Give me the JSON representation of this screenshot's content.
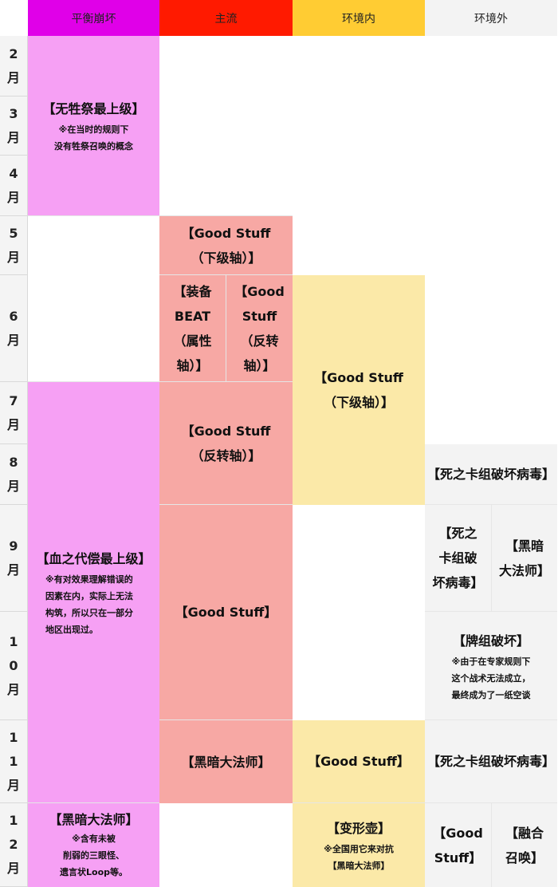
{
  "header": {
    "col_balance": "平衡崩坏",
    "col_mainstream": "主流",
    "col_in_env": "环境内",
    "col_out_env": "环境外"
  },
  "months": [
    [
      "2",
      "月"
    ],
    [
      "3",
      "月"
    ],
    [
      "4",
      "月"
    ],
    [
      "5",
      "月"
    ],
    [
      "6",
      "月"
    ],
    [
      "7",
      "月"
    ],
    [
      "8",
      "月"
    ],
    [
      "9",
      "月"
    ],
    [
      "1",
      "0",
      "月"
    ],
    [
      "1",
      "1",
      "月"
    ],
    [
      "1",
      "2",
      "月"
    ]
  ],
  "balance": {
    "b1_title": "【无牲祭最上级】",
    "b1_note1": "※在当时的规则下",
    "b1_note2": "没有牲祭召唤的概念",
    "b2_title": "【血之代偿最上级】",
    "b2_note1": "※有对效果理解错误的",
    "b2_note2": "因素在内，实际上无法",
    "b2_note3": "构筑，所以只在一部分",
    "b2_note4": "地区出现过。",
    "b3_title": "【黑暗大法师】",
    "b3_note1": "※含有未被",
    "b3_note2": "削弱的三眼怪、",
    "b3_note3": "遗言状Loop等。"
  },
  "mainstream": {
    "m1_l1": "【Good Stuff",
    "m1_l2": "（下级轴）】",
    "m2a_l1": "【装备",
    "m2a_l2": "BEAT",
    "m2a_l3": "（属性",
    "m2a_l4": "轴）】",
    "m2b_l1": "【Good",
    "m2b_l2": "Stuff",
    "m2b_l3": "（反转",
    "m2b_l4": "轴）】",
    "m3_l1": "【Good Stuff",
    "m3_l2": "（反转轴）】",
    "m4": "【Good Stuff】",
    "m5": "【黑暗大法师】"
  },
  "in_env": {
    "i1_l1": "【Good Stuff",
    "i1_l2": "（下级轴）】",
    "i2": "【Good Stuff】",
    "i3_title": "【变形壶】",
    "i3_note1": "※全国用它来对抗",
    "i3_note2": "【黑暗大法师】"
  },
  "out_env": {
    "o1": "【死之卡组破坏病毒】",
    "o2a_l1": "【死之",
    "o2a_l2": "卡组破",
    "o2a_l3": "坏病毒】",
    "o2b_l1": "【黑暗",
    "o2b_l2": "大法师】",
    "o3_title": "【牌组破坏】",
    "o3_note1": "※由于在专家规则下",
    "o3_note2": "这个战术无法成立，",
    "o3_note3": "最终成为了一纸空谈",
    "o4": "【死之卡组破坏病毒】",
    "o5a_l1": "【Good",
    "o5a_l2": "Stuff】",
    "o5b_l1": "【融合",
    "o5b_l2": "召唤】"
  },
  "colors": {
    "balance": "#f6a0f4",
    "balance_header": "#e000e8",
    "mainstream": "#f7a8a4",
    "mainstream_header": "#ff1a00",
    "in_env": "#fbe9a8",
    "in_env_header": "#ffcc33",
    "out_env": "#f3f3f3"
  }
}
